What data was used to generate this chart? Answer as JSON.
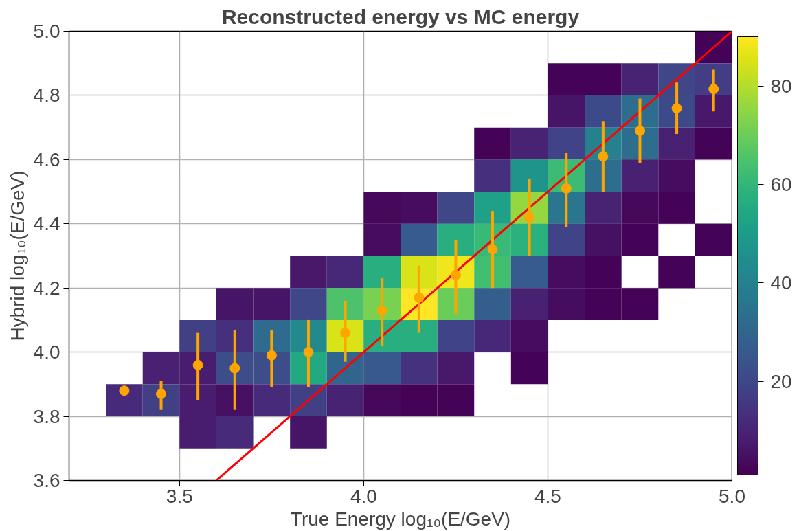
{
  "chart_data": {
    "type": "heatmap",
    "title": "Reconstructed energy vs MC energy",
    "xlabel": "True Energy log₁₀(E/GeV)",
    "ylabel": "Hybrid log₁₀(E/GeV)",
    "xlim": [
      3.2,
      5.0
    ],
    "ylim": [
      3.6,
      5.0
    ],
    "xticks": [
      {
        "value": 3.5,
        "label": "3.5"
      },
      {
        "value": 4.0,
        "label": "4.0"
      },
      {
        "value": 4.5,
        "label": "4.5"
      },
      {
        "value": 5.0,
        "label": "5.0"
      }
    ],
    "yticks": [
      {
        "value": 3.6,
        "label": "3.6"
      },
      {
        "value": 3.8,
        "label": "3.8"
      },
      {
        "value": 4.0,
        "label": "4.0"
      },
      {
        "value": 4.2,
        "label": "4.2"
      },
      {
        "value": 4.4,
        "label": "4.4"
      },
      {
        "value": 4.6,
        "label": "4.6"
      },
      {
        "value": 4.8,
        "label": "4.8"
      },
      {
        "value": 5.0,
        "label": "5.0"
      }
    ],
    "grid": true,
    "clim": [
      1,
      90
    ],
    "cticks": [
      20,
      40,
      60,
      80
    ],
    "x": [
      3.35,
      3.45,
      3.55,
      3.65,
      3.75,
      3.85,
      3.95,
      4.05,
      4.15,
      4.25,
      4.35,
      4.45,
      4.55,
      4.65,
      4.75,
      4.85,
      4.95
    ],
    "y": [
      4.95,
      4.85,
      4.75,
      4.65,
      4.55,
      4.45,
      4.35,
      4.25,
      4.15,
      4.05,
      3.95,
      3.85,
      3.75
    ],
    "cells": [
      [
        null,
        null,
        null,
        null,
        null,
        null,
        null,
        null,
        null,
        null,
        null,
        null,
        null,
        null,
        null,
        null,
        2
      ],
      [
        null,
        null,
        null,
        null,
        null,
        null,
        null,
        null,
        null,
        null,
        null,
        null,
        2,
        2,
        10,
        20,
        17
      ],
      [
        null,
        null,
        null,
        null,
        null,
        null,
        null,
        null,
        null,
        null,
        null,
        null,
        6,
        21,
        33,
        21,
        7
      ],
      [
        null,
        null,
        null,
        null,
        null,
        null,
        null,
        null,
        null,
        null,
        2,
        10,
        19,
        40,
        33,
        9,
        2
      ],
      [
        null,
        null,
        null,
        null,
        null,
        null,
        null,
        null,
        null,
        null,
        13,
        47,
        62,
        33,
        9,
        4,
        null
      ],
      [
        null,
        null,
        null,
        null,
        null,
        null,
        null,
        3,
        4,
        20,
        52,
        76,
        36,
        10,
        3,
        2,
        null
      ],
      [
        null,
        null,
        null,
        null,
        null,
        null,
        null,
        4,
        27,
        57,
        61,
        58,
        19,
        5,
        2,
        null,
        2
      ],
      [
        null,
        null,
        null,
        null,
        null,
        7,
        11,
        57,
        85,
        88,
        63,
        27,
        4,
        2,
        null,
        2,
        null
      ],
      [
        null,
        null,
        null,
        6,
        6,
        20,
        65,
        72,
        90,
        70,
        28,
        9,
        4,
        2,
        2,
        null,
        null
      ],
      [
        null,
        null,
        18,
        13,
        32,
        43,
        85,
        57,
        57,
        19,
        11,
        4,
        null,
        null,
        null,
        null,
        null
      ],
      [
        null,
        9,
        8,
        22,
        22,
        55,
        30,
        26,
        14,
        7,
        null,
        2,
        null,
        null,
        null,
        null,
        null
      ],
      [
        12,
        18,
        8,
        5,
        12,
        18,
        10,
        3,
        2,
        2,
        null,
        null,
        null,
        null,
        null,
        null,
        null
      ],
      [
        null,
        null,
        8,
        12,
        null,
        6,
        null,
        null,
        null,
        null,
        null,
        null,
        null,
        null,
        null,
        null,
        null
      ]
    ],
    "series": [
      {
        "type": "line",
        "color": "#ff0000",
        "x": [
          3.6,
          5.0
        ],
        "values": [
          3.6,
          5.0
        ]
      },
      {
        "type": "scatter",
        "color": "#ffa500",
        "marker": "circle",
        "x": [
          3.35,
          3.45,
          3.55,
          3.65,
          3.75,
          3.85,
          3.95,
          4.05,
          4.15,
          4.25,
          4.35,
          4.45,
          4.55,
          4.65,
          4.75,
          4.85,
          4.95
        ],
        "values": [
          3.88,
          3.87,
          3.96,
          3.95,
          3.99,
          4.0,
          4.06,
          4.13,
          4.17,
          4.24,
          4.32,
          4.42,
          4.51,
          4.61,
          4.69,
          4.76,
          4.82
        ],
        "errors": [
          null,
          [
            3.82,
            3.91
          ],
          [
            3.85,
            4.06
          ],
          [
            3.82,
            4.07
          ],
          [
            3.89,
            4.07
          ],
          [
            3.89,
            4.1
          ],
          [
            3.97,
            4.16
          ],
          [
            4.02,
            4.23
          ],
          [
            4.06,
            4.27
          ],
          [
            4.12,
            4.35
          ],
          [
            4.2,
            4.44
          ],
          [
            4.3,
            4.54
          ],
          [
            4.39,
            4.62
          ],
          [
            4.5,
            4.72
          ],
          [
            4.59,
            4.79
          ],
          [
            4.68,
            4.84
          ],
          [
            4.75,
            4.88
          ]
        ]
      }
    ]
  }
}
